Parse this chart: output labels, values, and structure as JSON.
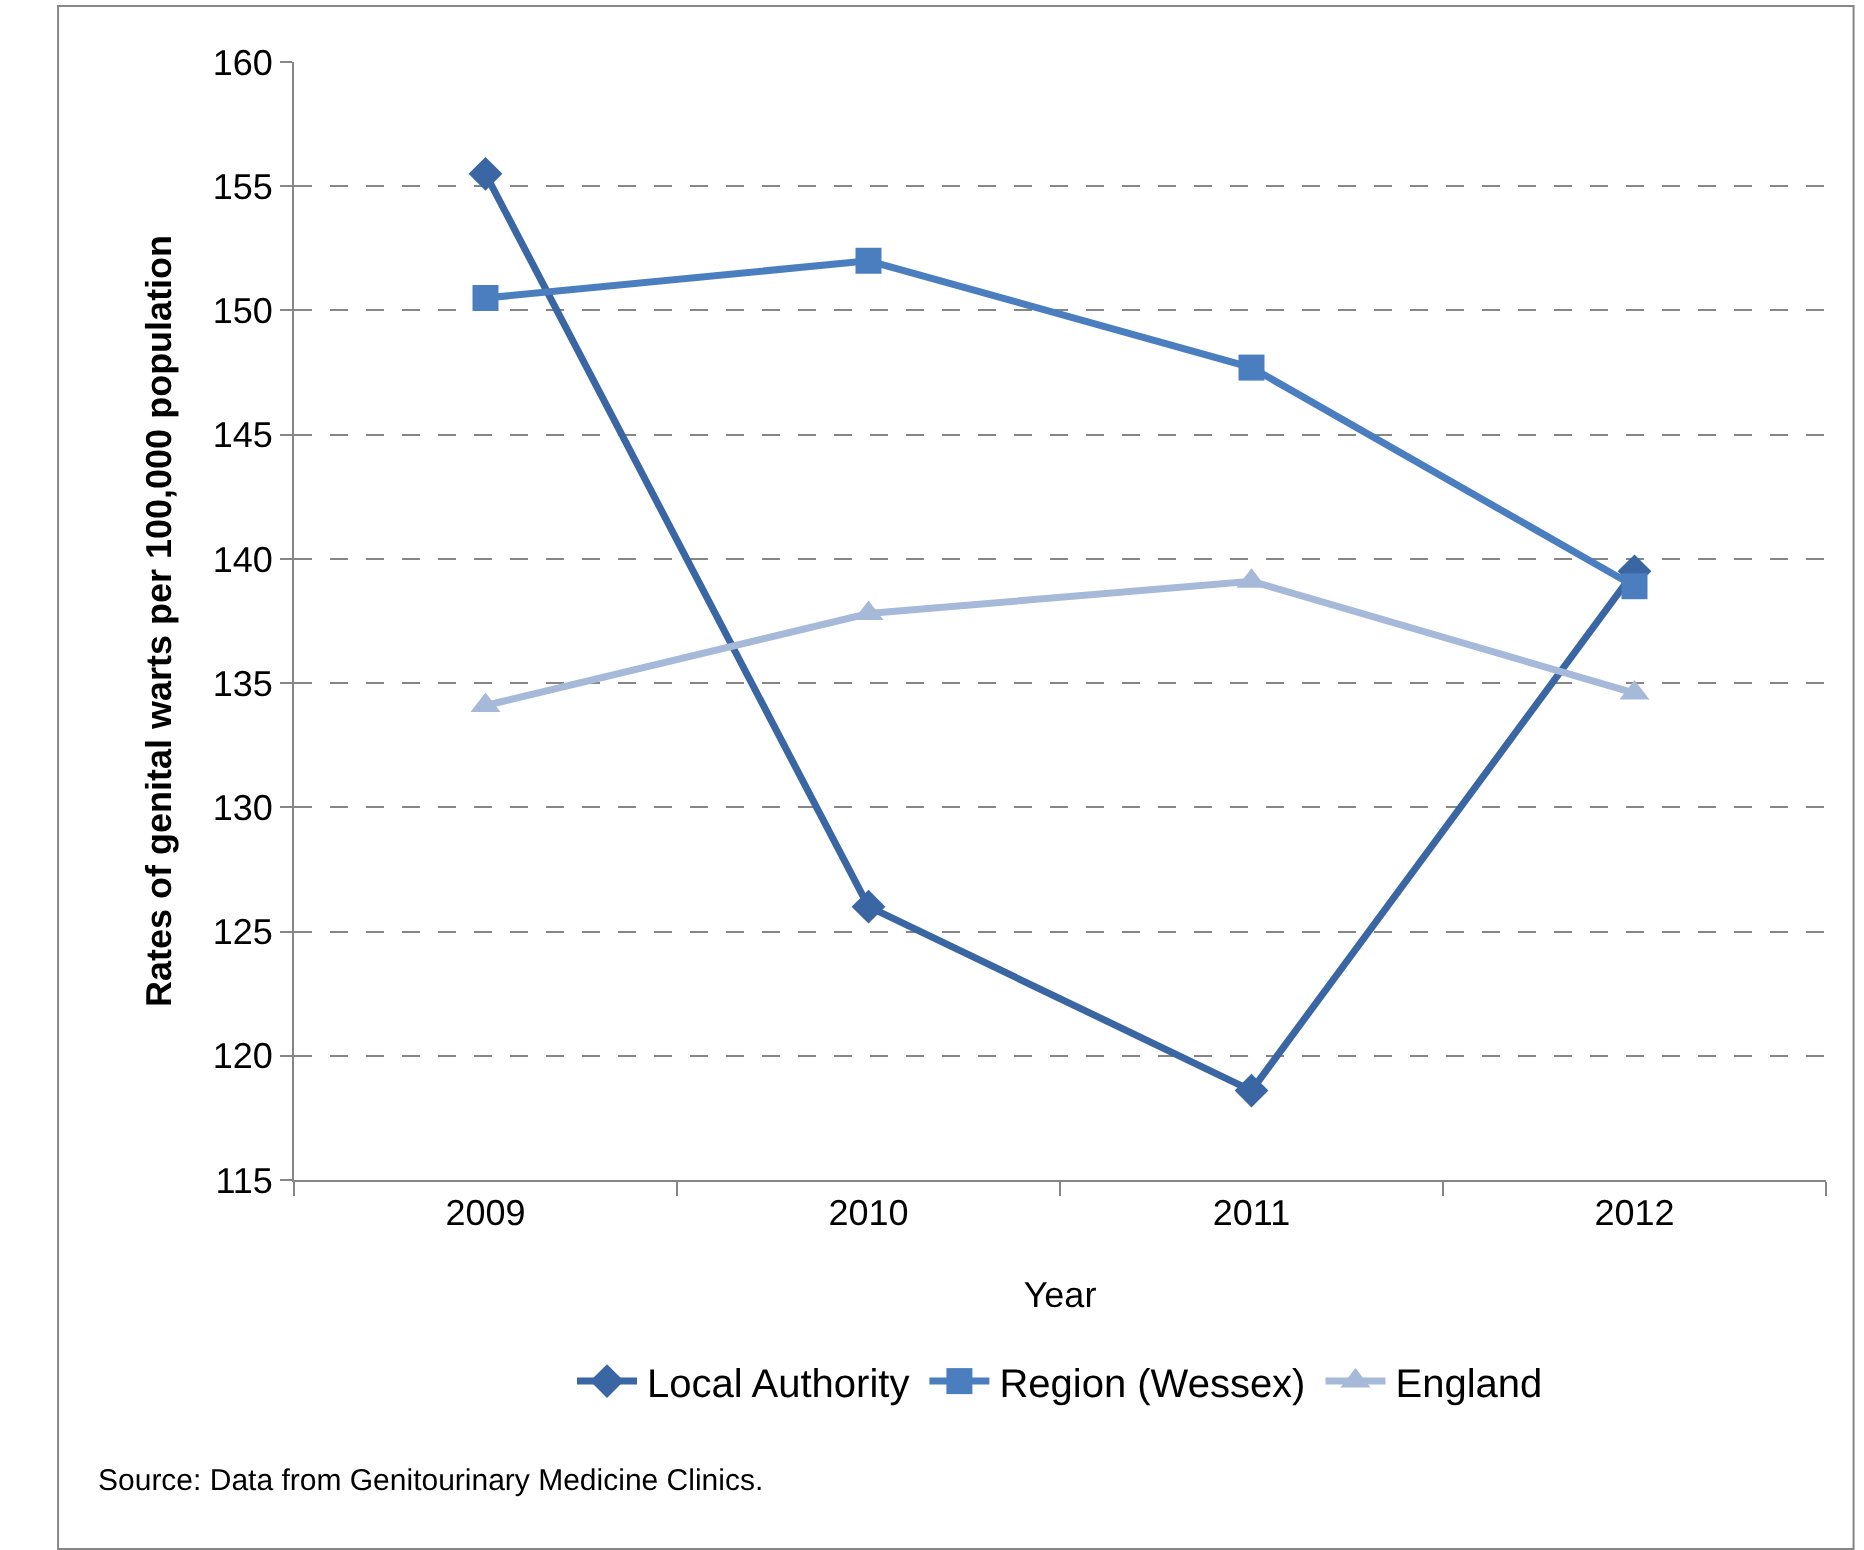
{
  "chart_data": {
    "type": "line",
    "xlabel": "Year",
    "ylabel": "Rates of genital warts per 100,000 population",
    "categories": [
      "2009",
      "2010",
      "2011",
      "2012"
    ],
    "series": [
      {
        "name": "Local Authority",
        "color": "#3a67a4",
        "marker": "diamond",
        "values": [
          155.5,
          126.0,
          118.6,
          139.5
        ]
      },
      {
        "name": "Region (Wessex)",
        "color": "#4a7ebf",
        "marker": "square",
        "values": [
          150.5,
          152.0,
          147.7,
          138.9
        ]
      },
      {
        "name": "England",
        "color": "#a6b9d9",
        "marker": "triangle",
        "values": [
          134.1,
          137.8,
          139.1,
          134.6
        ]
      }
    ],
    "ylim": [
      115,
      160
    ],
    "yticks": [
      115,
      120,
      125,
      130,
      135,
      140,
      145,
      150,
      155,
      160
    ],
    "grid": "y",
    "line_style": "solid",
    "legend": "bottom",
    "annotations": [
      "Source: Data from Genitourinary Medicine Clinics."
    ]
  }
}
